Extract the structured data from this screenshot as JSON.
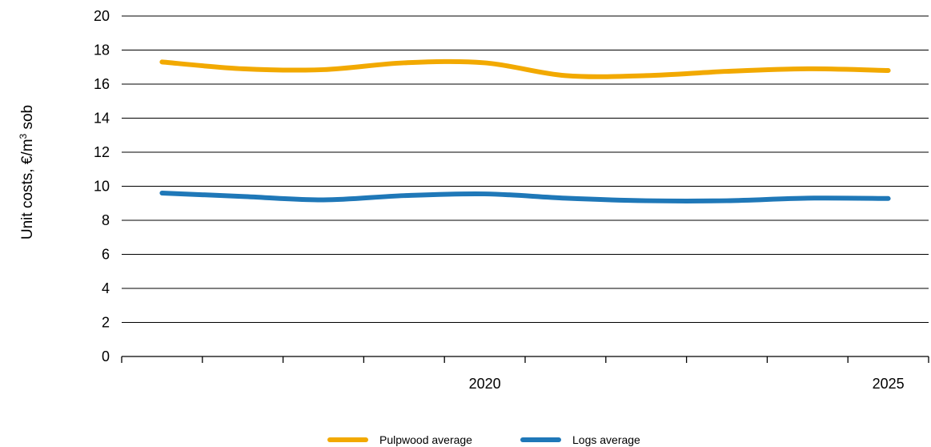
{
  "chart_data": {
    "type": "line",
    "ylabel_main": "Unit costs, €/m",
    "ylabel_sup": "3",
    "ylabel_tail": " sob",
    "xlabel": "",
    "ylim": [
      0,
      20
    ],
    "yticks": [
      "0",
      "2",
      "4",
      "6",
      "8",
      "10",
      "12",
      "14",
      "16",
      "18",
      "20"
    ],
    "x_labels": [
      {
        "label": "2020",
        "x": 2020
      },
      {
        "label": "2025",
        "x": 2025
      }
    ],
    "xlim": [
      2015.5,
      2025.5
    ],
    "x_ticks": [
      2016,
      2017,
      2018,
      2019,
      2020,
      2021,
      2022,
      2023,
      2024,
      2025
    ],
    "grid": true,
    "legend_position": "bottom-center",
    "x": [
      2016,
      2017,
      2018,
      2019,
      2020,
      2021,
      2022,
      2023,
      2024,
      2025
    ],
    "series": [
      {
        "name": "Pulpwood average",
        "color": "#F2A900",
        "values": [
          17.3,
          16.9,
          16.85,
          17.25,
          17.25,
          16.5,
          16.5,
          16.75,
          16.9,
          16.8
        ]
      },
      {
        "name": "Logs average",
        "color": "#1F78B8",
        "values": [
          9.6,
          9.4,
          9.2,
          9.45,
          9.55,
          9.3,
          9.15,
          9.15,
          9.3,
          9.28
        ]
      }
    ]
  }
}
